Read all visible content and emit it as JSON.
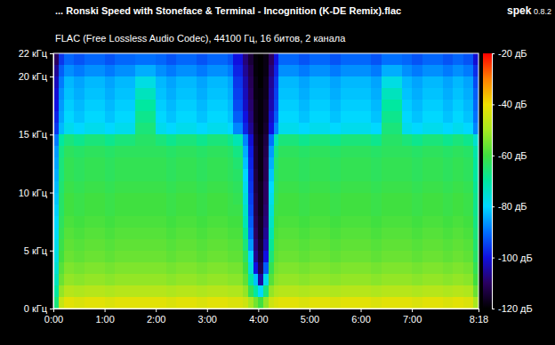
{
  "chart_data": {
    "type": "heatmap",
    "title": "... Ronski Speed with Stoneface & Terminal - Incognition (K-DE Remix).flac",
    "subtitle": "FLAC (Free Lossless Audio Codec), 44100 Гц, 16 битов, 2 канала",
    "annotations": [
      "spek",
      "0.8.2"
    ],
    "xlim": [
      0,
      498
    ],
    "ylim": [
      0,
      22
    ],
    "xticks": [
      {
        "value": 0,
        "label": "0:00"
      },
      {
        "value": 60,
        "label": "1:00"
      },
      {
        "value": 120,
        "label": "2:00"
      },
      {
        "value": 180,
        "label": "3:00"
      },
      {
        "value": 240,
        "label": "4:00"
      },
      {
        "value": 300,
        "label": "5:00"
      },
      {
        "value": 360,
        "label": "6:00"
      },
      {
        "value": 420,
        "label": "7:00"
      },
      {
        "value": 498,
        "label": "8:18"
      }
    ],
    "yticks": [
      {
        "value": 0,
        "label": "0 кГц"
      },
      {
        "value": 5,
        "label": "5 кГц"
      },
      {
        "value": 10,
        "label": "10 кГц"
      },
      {
        "value": 15,
        "label": "15 кГц"
      },
      {
        "value": 20,
        "label": "20 кГц"
      },
      {
        "value": 22,
        "label": "22 кГц"
      }
    ],
    "x_bins": [
      0,
      6,
      12,
      24,
      36,
      48,
      60,
      72,
      84,
      96,
      108,
      120,
      132,
      144,
      156,
      168,
      180,
      192,
      204,
      210,
      216,
      222,
      228,
      234,
      240,
      246,
      252,
      258,
      264,
      276,
      288,
      300,
      312,
      324,
      336,
      348,
      360,
      372,
      384,
      396,
      408,
      420,
      432,
      444,
      456,
      468,
      480,
      492,
      498
    ],
    "y_bins": [
      0,
      1,
      2,
      3,
      4,
      5,
      6,
      7,
      8,
      9,
      10,
      11,
      12,
      13,
      14,
      15,
      16,
      17,
      18,
      19,
      20,
      21,
      22
    ],
    "cells": [
      [
        -66,
        -70,
        -73,
        -75,
        -77,
        -78,
        -79,
        -80,
        -81,
        -82,
        -83,
        -84,
        -85,
        -86,
        -89,
        -96,
        -98,
        -100,
        -101,
        -103,
        -106,
        -110
      ],
      [
        -46,
        -52,
        -56,
        -58,
        -60,
        -61,
        -62,
        -63,
        -64,
        -64,
        -65,
        -66,
        -66,
        -67,
        -70,
        -83,
        -85,
        -86,
        -87,
        -89,
        -92,
        -96
      ],
      [
        -42,
        -48,
        -52,
        -54,
        -56,
        -57,
        -58,
        -59,
        -60,
        -60,
        -61,
        -62,
        -62,
        -63,
        -66,
        -78,
        -80,
        -81,
        -82,
        -83,
        -87,
        -91
      ],
      [
        -43,
        -49,
        -53,
        -55,
        -57,
        -58,
        -59,
        -60,
        -61,
        -61,
        -62,
        -63,
        -63,
        -64,
        -68,
        -80,
        -82,
        -83,
        -84,
        -85,
        -89,
        -93
      ],
      [
        -42,
        -48,
        -52,
        -54,
        -56,
        -57,
        -58,
        -59,
        -60,
        -60,
        -61,
        -62,
        -62,
        -63,
        -66,
        -78,
        -80,
        -81,
        -82,
        -83,
        -87,
        -91
      ],
      [
        -42,
        -48,
        -52,
        -54,
        -56,
        -57,
        -58,
        -59,
        -60,
        -60,
        -61,
        -62,
        -62,
        -63,
        -66,
        -78,
        -80,
        -81,
        -82,
        -83,
        -87,
        -91
      ],
      [
        -43,
        -49,
        -53,
        -55,
        -57,
        -58,
        -59,
        -60,
        -61,
        -61,
        -62,
        -63,
        -63,
        -64,
        -68,
        -80,
        -82,
        -83,
        -84,
        -85,
        -89,
        -93
      ],
      [
        -42,
        -48,
        -52,
        -54,
        -56,
        -57,
        -58,
        -59,
        -60,
        -60,
        -61,
        -62,
        -62,
        -63,
        -66,
        -78,
        -80,
        -81,
        -82,
        -83,
        -87,
        -91
      ],
      [
        -42,
        -48,
        -52,
        -54,
        -56,
        -57,
        -58,
        -59,
        -60,
        -60,
        -61,
        -62,
        -62,
        -63,
        -66,
        -78,
        -80,
        -81,
        -82,
        -83,
        -87,
        -91
      ],
      [
        -42,
        -48,
        -52,
        -54,
        -56,
        -57,
        -58,
        -59,
        -60,
        -60,
        -61,
        -62,
        -62,
        -63,
        -64,
        -66,
        -68,
        -70,
        -73,
        -77,
        -84,
        -90
      ],
      [
        -42,
        -48,
        -52,
        -54,
        -56,
        -57,
        -58,
        -59,
        -60,
        -60,
        -61,
        -62,
        -62,
        -63,
        -64,
        -66,
        -68,
        -70,
        -73,
        -77,
        -84,
        -90
      ],
      [
        -42,
        -48,
        -52,
        -54,
        -56,
        -57,
        -58,
        -59,
        -60,
        -60,
        -61,
        -62,
        -62,
        -63,
        -66,
        -78,
        -80,
        -81,
        -82,
        -83,
        -87,
        -91
      ],
      [
        -43,
        -49,
        -53,
        -55,
        -57,
        -58,
        -59,
        -60,
        -61,
        -61,
        -62,
        -63,
        -63,
        -64,
        -68,
        -80,
        -82,
        -83,
        -84,
        -85,
        -89,
        -93
      ],
      [
        -42,
        -48,
        -52,
        -54,
        -56,
        -57,
        -58,
        -59,
        -60,
        -60,
        -61,
        -62,
        -62,
        -63,
        -66,
        -78,
        -80,
        -81,
        -82,
        -83,
        -87,
        -91
      ],
      [
        -42,
        -48,
        -52,
        -54,
        -56,
        -57,
        -58,
        -59,
        -60,
        -60,
        -61,
        -62,
        -62,
        -63,
        -66,
        -78,
        -80,
        -81,
        -82,
        -83,
        -87,
        -91
      ],
      [
        -43,
        -49,
        -53,
        -55,
        -57,
        -58,
        -59,
        -60,
        -61,
        -61,
        -62,
        -63,
        -63,
        -64,
        -68,
        -80,
        -82,
        -83,
        -84,
        -85,
        -89,
        -93
      ],
      [
        -42,
        -48,
        -52,
        -54,
        -56,
        -57,
        -58,
        -59,
        -60,
        -60,
        -61,
        -62,
        -62,
        -63,
        -66,
        -78,
        -80,
        -81,
        -82,
        -83,
        -87,
        -91
      ],
      [
        -42,
        -48,
        -52,
        -54,
        -56,
        -57,
        -58,
        -59,
        -60,
        -60,
        -61,
        -62,
        -62,
        -63,
        -66,
        -78,
        -80,
        -81,
        -82,
        -83,
        -87,
        -91
      ],
      [
        -43,
        -49,
        -53,
        -55,
        -57,
        -58,
        -59,
        -60,
        -61,
        -61,
        -62,
        -63,
        -63,
        -64,
        -68,
        -80,
        -82,
        -83,
        -84,
        -85,
        -89,
        -93
      ],
      [
        -43,
        -49,
        -53,
        -55,
        -57,
        -58,
        -59,
        -60,
        -61,
        -62,
        -63,
        -64,
        -65,
        -67,
        -72,
        -88,
        -92,
        -94,
        -95,
        -96,
        -98,
        -100
      ],
      [
        -43,
        -49,
        -53,
        -55,
        -57,
        -58,
        -59,
        -60,
        -61,
        -62,
        -63,
        -64,
        -65,
        -67,
        -72,
        -88,
        -92,
        -94,
        -95,
        -96,
        -98,
        -100
      ],
      [
        -45,
        -52,
        -57,
        -60,
        -63,
        -66,
        -69,
        -72,
        -74,
        -76,
        -78,
        -80,
        -82,
        -84,
        -88,
        -98,
        -100,
        -102,
        -103,
        -104,
        -106,
        -108
      ],
      [
        -50,
        -62,
        -70,
        -76,
        -80,
        -86,
        -90,
        -92,
        -94,
        -95,
        -96,
        -97,
        -98,
        -99,
        -101,
        -106,
        -108,
        -109,
        -110,
        -111,
        -112,
        -114
      ],
      [
        -55,
        -70,
        -82,
        -100,
        -106,
        -108,
        -110,
        -111,
        -112,
        -112,
        -113,
        -113,
        -114,
        -114,
        -115,
        -116,
        -117,
        -117,
        -118,
        -118,
        -119,
        -119
      ],
      [
        -60,
        -80,
        -105,
        -112,
        -114,
        -115,
        -116,
        -116,
        -117,
        -117,
        -117,
        -118,
        -118,
        -118,
        -118,
        -119,
        -119,
        -119,
        -119,
        -120,
        -120,
        -120
      ],
      [
        -52,
        -66,
        -78,
        -92,
        -100,
        -104,
        -106,
        -108,
        -109,
        -110,
        -110,
        -111,
        -111,
        -112,
        -113,
        -115,
        -116,
        -116,
        -117,
        -117,
        -118,
        -118
      ],
      [
        -45,
        -52,
        -58,
        -62,
        -66,
        -69,
        -72,
        -74,
        -76,
        -78,
        -80,
        -82,
        -84,
        -86,
        -90,
        -100,
        -102,
        -104,
        -105,
        -106,
        -108,
        -110
      ],
      [
        -43,
        -49,
        -53,
        -55,
        -57,
        -58,
        -59,
        -60,
        -61,
        -62,
        -63,
        -64,
        -65,
        -67,
        -72,
        -88,
        -92,
        -94,
        -95,
        -96,
        -98,
        -100
      ],
      [
        -42,
        -48,
        -52,
        -54,
        -56,
        -57,
        -58,
        -59,
        -60,
        -60,
        -61,
        -62,
        -62,
        -63,
        -66,
        -78,
        -80,
        -81,
        -82,
        -83,
        -87,
        -91
      ],
      [
        -42,
        -48,
        -52,
        -54,
        -56,
        -57,
        -58,
        -59,
        -60,
        -60,
        -61,
        -62,
        -62,
        -63,
        -66,
        -78,
        -80,
        -81,
        -82,
        -83,
        -87,
        -91
      ],
      [
        -43,
        -49,
        -53,
        -55,
        -57,
        -58,
        -59,
        -60,
        -61,
        -61,
        -62,
        -63,
        -63,
        -64,
        -68,
        -80,
        -82,
        -83,
        -84,
        -85,
        -89,
        -93
      ],
      [
        -42,
        -48,
        -52,
        -54,
        -56,
        -57,
        -58,
        -59,
        -60,
        -60,
        -61,
        -62,
        -62,
        -63,
        -66,
        -78,
        -80,
        -81,
        -82,
        -83,
        -87,
        -91
      ],
      [
        -42,
        -48,
        -52,
        -54,
        -56,
        -57,
        -58,
        -59,
        -60,
        -60,
        -61,
        -62,
        -62,
        -63,
        -66,
        -78,
        -80,
        -81,
        -82,
        -83,
        -87,
        -91
      ],
      [
        -43,
        -49,
        -53,
        -55,
        -57,
        -58,
        -59,
        -60,
        -61,
        -61,
        -62,
        -63,
        -63,
        -64,
        -68,
        -80,
        -82,
        -83,
        -84,
        -85,
        -89,
        -93
      ],
      [
        -42,
        -48,
        -52,
        -54,
        -56,
        -57,
        -58,
        -59,
        -60,
        -60,
        -61,
        -62,
        -62,
        -63,
        -66,
        -78,
        -80,
        -81,
        -82,
        -83,
        -87,
        -91
      ],
      [
        -42,
        -48,
        -52,
        -54,
        -56,
        -57,
        -58,
        -59,
        -60,
        -60,
        -61,
        -62,
        -62,
        -63,
        -66,
        -78,
        -80,
        -81,
        -82,
        -83,
        -87,
        -91
      ],
      [
        -42,
        -48,
        -52,
        -54,
        -56,
        -57,
        -58,
        -59,
        -60,
        -60,
        -61,
        -62,
        -62,
        -63,
        -66,
        -78,
        -80,
        -81,
        -82,
        -83,
        -87,
        -91
      ],
      [
        -43,
        -49,
        -53,
        -55,
        -57,
        -58,
        -59,
        -60,
        -61,
        -61,
        -62,
        -63,
        -63,
        -64,
        -68,
        -80,
        -82,
        -83,
        -84,
        -85,
        -89,
        -93
      ],
      [
        -42,
        -48,
        -52,
        -54,
        -56,
        -57,
        -58,
        -59,
        -60,
        -60,
        -61,
        -62,
        -62,
        -63,
        -64,
        -66,
        -68,
        -70,
        -73,
        -77,
        -84,
        -90
      ],
      [
        -42,
        -48,
        -52,
        -54,
        -56,
        -57,
        -58,
        -59,
        -60,
        -60,
        -61,
        -62,
        -62,
        -63,
        -64,
        -66,
        -68,
        -70,
        -73,
        -77,
        -84,
        -90
      ],
      [
        -42,
        -48,
        -52,
        -54,
        -56,
        -57,
        -58,
        -59,
        -60,
        -60,
        -61,
        -62,
        -62,
        -63,
        -66,
        -78,
        -80,
        -81,
        -82,
        -83,
        -87,
        -91
      ],
      [
        -43,
        -49,
        -53,
        -55,
        -57,
        -58,
        -59,
        -60,
        -61,
        -61,
        -62,
        -63,
        -63,
        -64,
        -68,
        -80,
        -82,
        -83,
        -84,
        -85,
        -89,
        -93
      ],
      [
        -42,
        -48,
        -52,
        -54,
        -56,
        -57,
        -58,
        -59,
        -60,
        -60,
        -61,
        -62,
        -62,
        -63,
        -66,
        -78,
        -80,
        -81,
        -82,
        -83,
        -87,
        -91
      ],
      [
        -42,
        -48,
        -52,
        -54,
        -56,
        -57,
        -58,
        -59,
        -60,
        -60,
        -61,
        -62,
        -62,
        -63,
        -66,
        -78,
        -80,
        -81,
        -82,
        -83,
        -87,
        -91
      ],
      [
        -43,
        -49,
        -53,
        -55,
        -57,
        -58,
        -59,
        -60,
        -61,
        -61,
        -62,
        -63,
        -63,
        -64,
        -68,
        -80,
        -82,
        -83,
        -84,
        -85,
        -89,
        -93
      ],
      [
        -42,
        -48,
        -52,
        -54,
        -56,
        -57,
        -58,
        -59,
        -60,
        -60,
        -61,
        -62,
        -62,
        -63,
        -66,
        -78,
        -80,
        -81,
        -82,
        -83,
        -87,
        -91
      ],
      [
        -43,
        -49,
        -53,
        -55,
        -57,
        -58,
        -59,
        -60,
        -61,
        -61,
        -62,
        -63,
        -63,
        -64,
        -68,
        -80,
        -82,
        -83,
        -84,
        -85,
        -89,
        -93
      ],
      [
        -50,
        -56,
        -60,
        -62,
        -64,
        -65,
        -66,
        -67,
        -68,
        -68,
        -69,
        -70,
        -70,
        -71,
        -75,
        -88,
        -90,
        -91,
        -92,
        -94,
        -97,
        -101
      ]
    ],
    "color_range": [
      -120,
      -20
    ],
    "color_ticks": [
      {
        "value": -20,
        "label": "-20 дБ"
      },
      {
        "value": -40,
        "label": "-40 дБ"
      },
      {
        "value": -60,
        "label": "-60 дБ"
      },
      {
        "value": -80,
        "label": "-80 дБ"
      },
      {
        "value": -100,
        "label": "-100 дБ"
      },
      {
        "value": -120,
        "label": "-120 дБ"
      }
    ]
  }
}
